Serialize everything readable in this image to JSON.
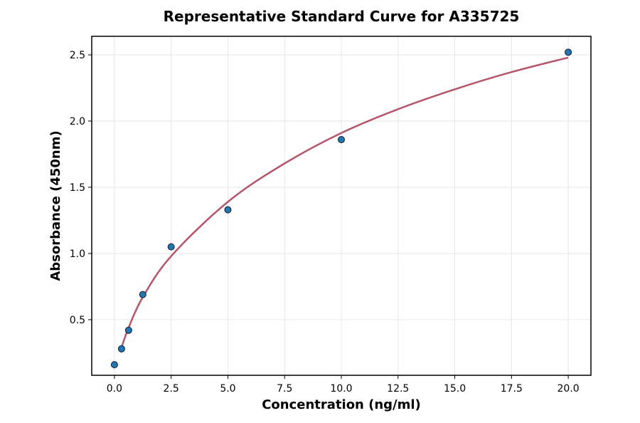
{
  "chart_data": {
    "type": "scatter",
    "title": "Representative Standard Curve for A335725",
    "xlabel": "Concentration (ng/ml)",
    "ylabel": "Absorbance (450nm)",
    "xlim": [
      -1.0,
      21.0
    ],
    "ylim": [
      0.08,
      2.64
    ],
    "x_ticks": [
      0.0,
      2.5,
      5.0,
      7.5,
      10.0,
      12.5,
      15.0,
      17.5,
      20.0
    ],
    "x_tick_labels": [
      "0.0",
      "2.5",
      "5.0",
      "7.5",
      "10.0",
      "12.5",
      "15.0",
      "17.5",
      "20.0"
    ],
    "y_ticks": [
      0.5,
      1.0,
      1.5,
      2.0,
      2.5
    ],
    "y_tick_labels": [
      "0.5",
      "1.0",
      "1.5",
      "2.0",
      "2.5"
    ],
    "grid": true,
    "series": [
      {
        "kind": "points",
        "color": "#1f77b4",
        "x": [
          0.0,
          0.313,
          0.625,
          1.25,
          2.5,
          5.0,
          10.0,
          20.0
        ],
        "y": [
          0.16,
          0.28,
          0.42,
          0.69,
          1.05,
          1.33,
          1.86,
          2.52
        ]
      },
      {
        "kind": "fit-curve",
        "color": "#b5566b",
        "x": [
          0.313,
          0.625,
          1.25,
          2.5,
          5.0,
          7.5,
          10.0,
          12.5,
          15.0,
          17.5,
          20.0
        ],
        "y": [
          0.29,
          0.44,
          0.67,
          0.98,
          1.39,
          1.68,
          1.91,
          2.09,
          2.24,
          2.37,
          2.48
        ]
      }
    ]
  }
}
